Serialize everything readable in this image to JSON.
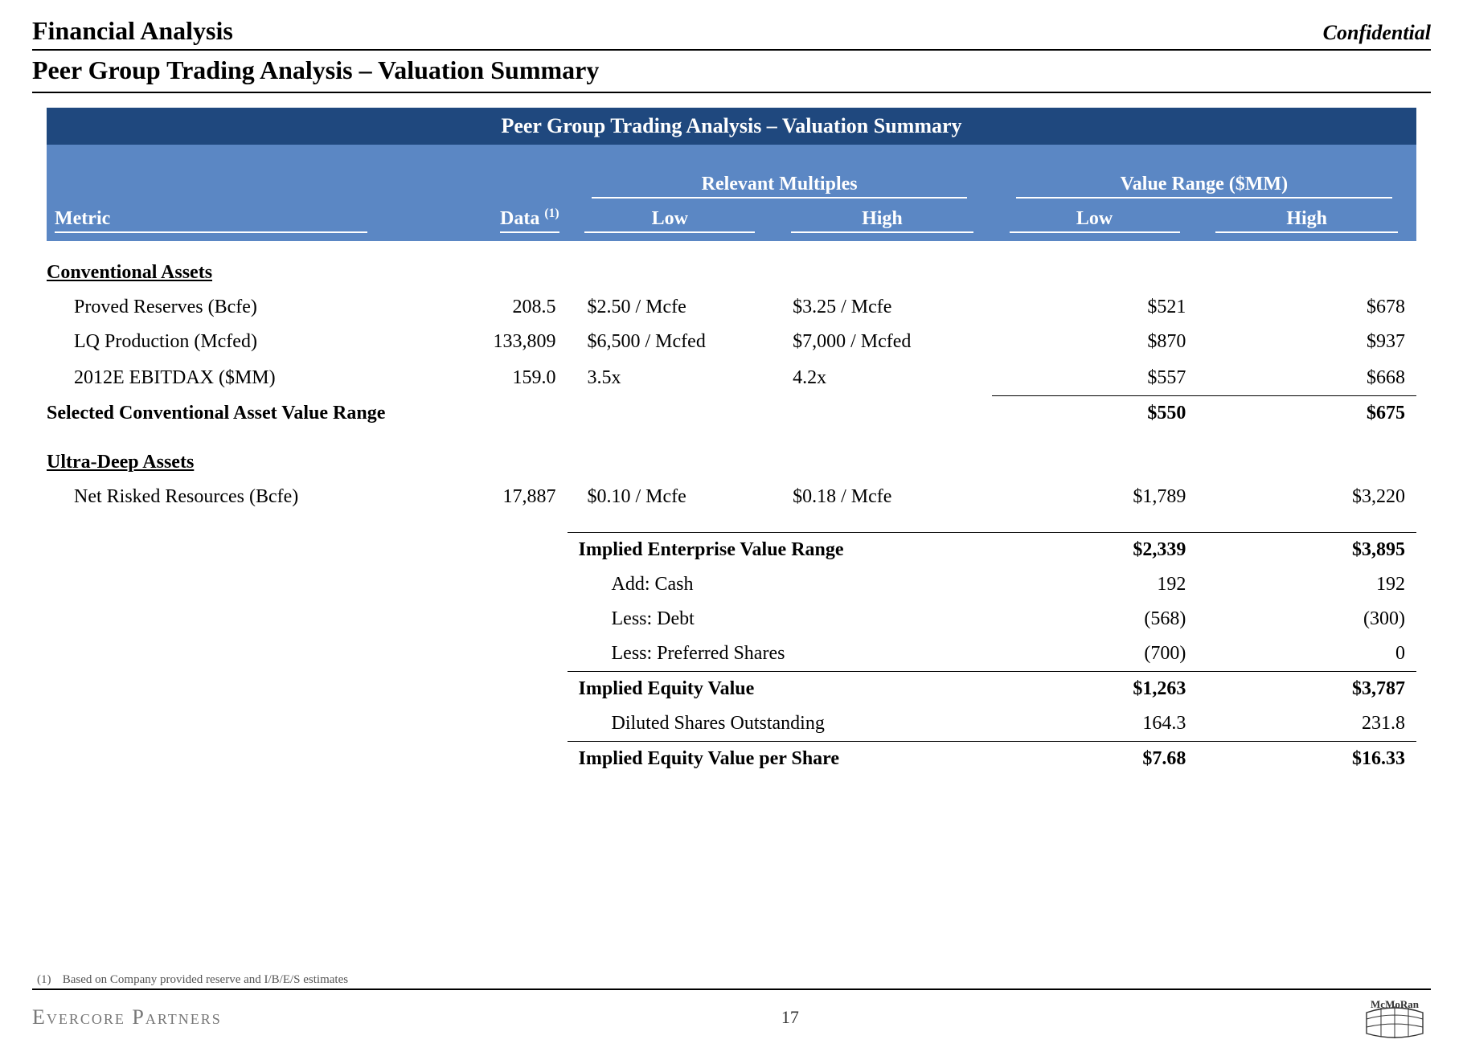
{
  "header": {
    "title": "Financial Analysis",
    "confidential": "Confidential",
    "subtitle": "Peer Group Trading Analysis – Valuation Summary"
  },
  "tableHeader": {
    "bannerTitle": "Peer Group Trading Analysis – Valuation Summary",
    "metricLabel": "Metric",
    "dataLabel": "Data",
    "dataSuperscript": "(1)",
    "group1": "Relevant Multiples",
    "group2": "Value Range ($MM)",
    "lowLabel": "Low",
    "highLabel": "High"
  },
  "sections": {
    "conventional": {
      "title": "Conventional Assets",
      "rows": [
        {
          "metric": "Proved Reserves (Bcfe)",
          "data": "208.5",
          "multLow": "$2.50 / Mcfe",
          "multHigh": "$3.25 / Mcfe",
          "valLow": "$521",
          "valHigh": "$678"
        },
        {
          "metric": "LQ Production (Mcfed)",
          "data": "133,809",
          "multLow": "$6,500 / Mcfed",
          "multHigh": "$7,000 / Mcfed",
          "valLow": "$870",
          "valHigh": "$937"
        },
        {
          "metric": "2012E EBITDAX ($MM)",
          "data": "159.0",
          "multLow": "3.5x",
          "multHigh": "4.2x",
          "valLow": "$557",
          "valHigh": "$668"
        }
      ],
      "summary": {
        "label": "Selected Conventional Asset Value Range",
        "valLow": "$550",
        "valHigh": "$675"
      }
    },
    "ultradeep": {
      "title": "Ultra-Deep Assets",
      "rows": [
        {
          "metric": "Net Risked Resources (Bcfe)",
          "data": "17,887",
          "multLow": "$0.10 / Mcfe",
          "multHigh": "$0.18 / Mcfe",
          "valLow": "$1,789",
          "valHigh": "$3,220"
        }
      ]
    }
  },
  "calculations": [
    {
      "label": "Implied Enterprise Value Range",
      "valLow": "$2,339",
      "valHigh": "$3,895",
      "bold": true,
      "topline": true
    },
    {
      "label": "Add: Cash",
      "valLow": "192",
      "valHigh": "192",
      "indent": true
    },
    {
      "label": "Less: Debt",
      "valLow": "(568)",
      "valHigh": "(300)",
      "indent": true
    },
    {
      "label": "Less: Preferred Shares",
      "valLow": "(700)",
      "valHigh": "0",
      "indent": true
    },
    {
      "label": "Implied Equity Value",
      "valLow": "$1,263",
      "valHigh": "$3,787",
      "bold": true,
      "topline": true
    },
    {
      "label": "Diluted Shares Outstanding",
      "valLow": "164.3",
      "valHigh": "231.8",
      "indent": true
    },
    {
      "label": "Implied Equity Value per Share",
      "valLow": "$7.68",
      "valHigh": "$16.33",
      "bold": true,
      "topline": true
    }
  ],
  "footnote": {
    "num": "(1)",
    "text": "Based on Company provided reserve and I/B/E/S estimates"
  },
  "footer": {
    "brand": "Evercore Partners",
    "pageNum": "17",
    "logoText": "McMoRan"
  },
  "colors": {
    "bannerBg": "#1f487e",
    "headerBg": "#5b87c4",
    "headerText": "#ffffff",
    "text": "#000000"
  }
}
